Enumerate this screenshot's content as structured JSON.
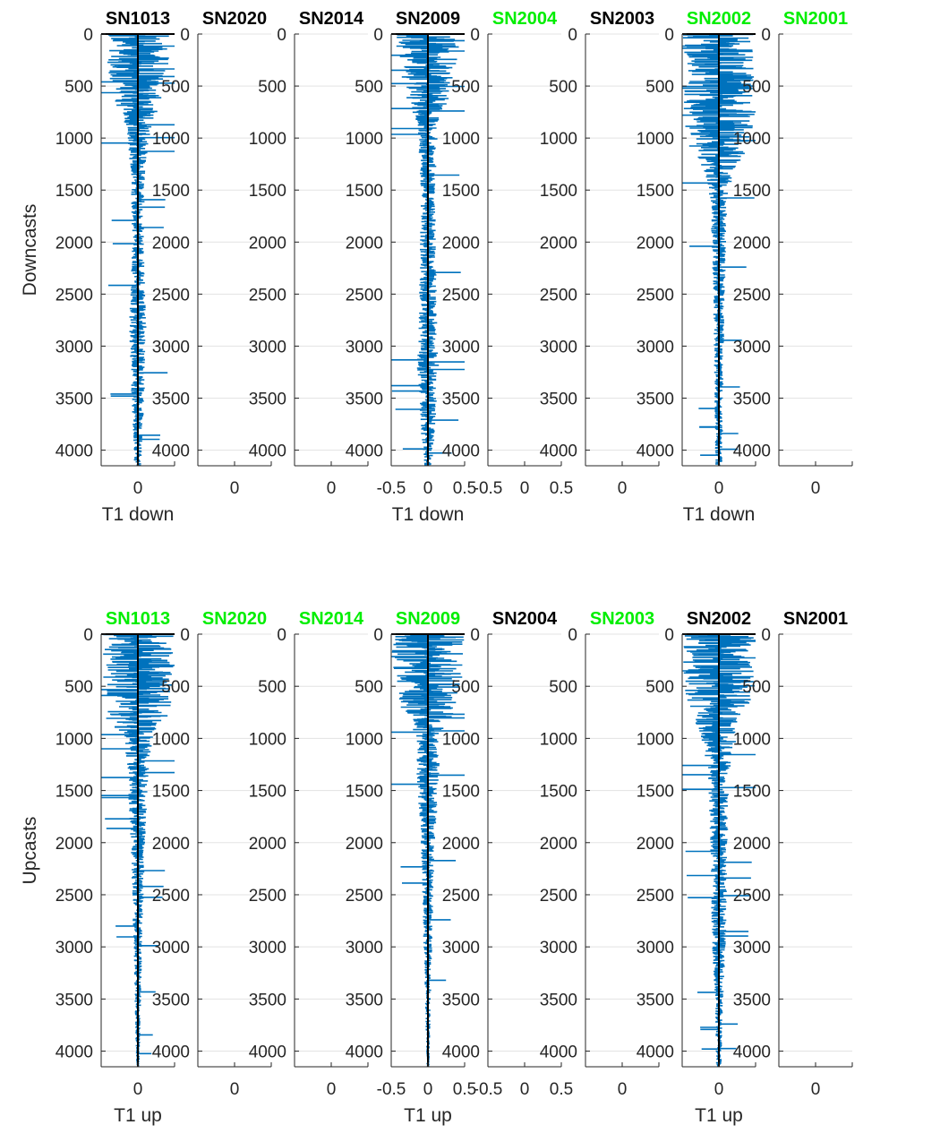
{
  "chart_data": {
    "type": "line",
    "description_rows": [
      {
        "row_label": "Downcasts",
        "xlabel": "T1 down",
        "panels": [
          {
            "title": "SN1013",
            "title_color": "#000000",
            "has_data": true,
            "amplitude_profile": [
              [
                0,
                0.45
              ],
              [
                300,
                0.42
              ],
              [
                600,
                0.35
              ],
              [
                900,
                0.18
              ],
              [
                1300,
                0.1
              ],
              [
                2000,
                0.08
              ],
              [
                2800,
                0.12
              ],
              [
                3300,
                0.1
              ],
              [
                4000,
                0.06
              ],
              [
                4150,
                0.05
              ]
            ]
          },
          {
            "title": "SN2020",
            "title_color": "#000000",
            "has_data": false
          },
          {
            "title": "SN2014",
            "title_color": "#000000",
            "has_data": false
          },
          {
            "title": "SN2009",
            "title_color": "#000000",
            "has_data": true,
            "amplitude_profile": [
              [
                0,
                0.45
              ],
              [
                300,
                0.4
              ],
              [
                600,
                0.3
              ],
              [
                900,
                0.14
              ],
              [
                1500,
                0.1
              ],
              [
                2500,
                0.12
              ],
              [
                3200,
                0.15
              ],
              [
                4000,
                0.08
              ],
              [
                4150,
                0.05
              ]
            ]
          },
          {
            "title": "SN2004",
            "title_color": "#00ee00",
            "has_data": false
          },
          {
            "title": "SN2003",
            "title_color": "#000000",
            "has_data": false
          },
          {
            "title": "SN2002",
            "title_color": "#00ee00",
            "has_data": true,
            "amplitude_profile": [
              [
                0,
                0.5
              ],
              [
                500,
                0.5
              ],
              [
                900,
                0.48
              ],
              [
                1100,
                0.4
              ],
              [
                1300,
                0.22
              ],
              [
                1600,
                0.12
              ],
              [
                2500,
                0.08
              ],
              [
                3500,
                0.06
              ],
              [
                4150,
                0.05
              ]
            ]
          },
          {
            "title": "SN2001",
            "title_color": "#00ee00",
            "has_data": false
          }
        ]
      },
      {
        "row_label": "Upcasts",
        "xlabel": "T1 up",
        "panels": [
          {
            "title": "SN1013",
            "title_color": "#00ee00",
            "has_data": true,
            "amplitude_profile": [
              [
                0,
                0.5
              ],
              [
                400,
                0.48
              ],
              [
                800,
                0.45
              ],
              [
                1000,
                0.2
              ],
              [
                1300,
                0.15
              ],
              [
                2000,
                0.1
              ],
              [
                3000,
                0.06
              ],
              [
                4000,
                0.03
              ],
              [
                4150,
                0.02
              ]
            ]
          },
          {
            "title": "SN2020",
            "title_color": "#00ee00",
            "has_data": false
          },
          {
            "title": "SN2014",
            "title_color": "#00ee00",
            "has_data": false
          },
          {
            "title": "SN2009",
            "title_color": "#00ee00",
            "has_data": true,
            "amplitude_profile": [
              [
                0,
                0.5
              ],
              [
                400,
                0.48
              ],
              [
                800,
                0.35
              ],
              [
                1000,
                0.15
              ],
              [
                1300,
                0.16
              ],
              [
                2000,
                0.1
              ],
              [
                3000,
                0.06
              ],
              [
                4150,
                0.02
              ]
            ]
          },
          {
            "title": "SN2004",
            "title_color": "#000000",
            "has_data": false
          },
          {
            "title": "SN2003",
            "title_color": "#00ee00",
            "has_data": false
          },
          {
            "title": "SN2002",
            "title_color": "#000000",
            "has_data": true,
            "amplitude_profile": [
              [
                0,
                0.5
              ],
              [
                500,
                0.5
              ],
              [
                900,
                0.3
              ],
              [
                1300,
                0.15
              ],
              [
                2000,
                0.12
              ],
              [
                2900,
                0.1
              ],
              [
                3500,
                0.06
              ],
              [
                4150,
                0.04
              ]
            ]
          },
          {
            "title": "SN2001",
            "title_color": "#000000",
            "has_data": false
          }
        ]
      }
    ],
    "yticks": [
      0,
      500,
      1000,
      1500,
      2000,
      2500,
      3000,
      3500,
      4000
    ],
    "ylim": [
      0,
      4150
    ],
    "y_reversed": true,
    "xlim": [
      -0.5,
      0.5
    ],
    "xticks_labeled": [
      "-0.5",
      "0",
      "0.5"
    ],
    "xtick_center_label": "0",
    "grid": "horizontal",
    "series_color": "#0072bd",
    "zero_line_color": "#000000"
  }
}
